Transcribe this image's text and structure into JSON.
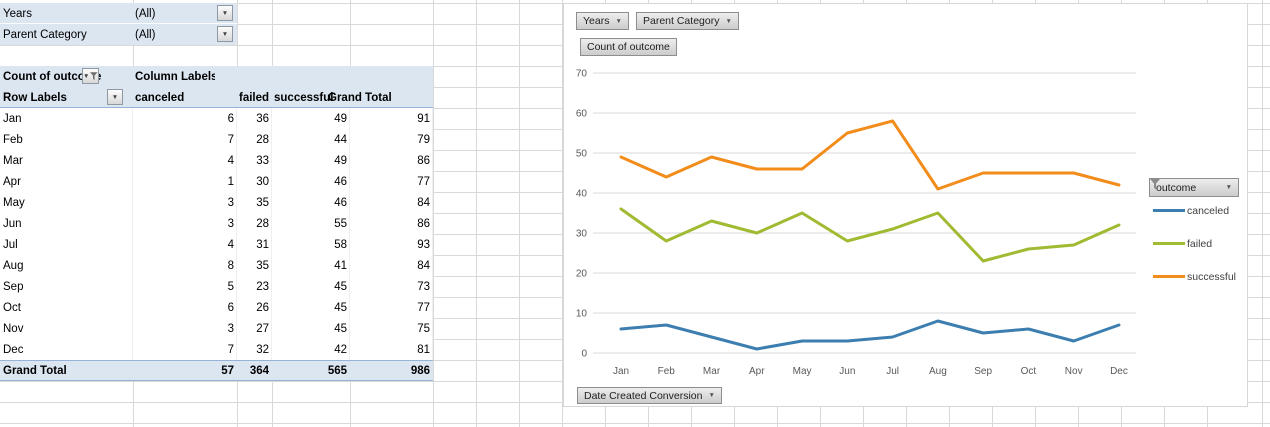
{
  "filters": {
    "rows": [
      {
        "label": "Years",
        "value": "(All)"
      },
      {
        "label": "Parent Category",
        "value": "(All)"
      }
    ]
  },
  "pivot": {
    "measure_label": "Count of outcome",
    "column_field_label": "Column Labels",
    "row_field_label": "Row Labels",
    "columns": [
      "canceled",
      "failed",
      "successful",
      "Grand Total"
    ],
    "rows": [
      {
        "label": "Jan",
        "values": [
          6,
          36,
          49,
          91
        ]
      },
      {
        "label": "Feb",
        "values": [
          7,
          28,
          44,
          79
        ]
      },
      {
        "label": "Mar",
        "values": [
          4,
          33,
          49,
          86
        ]
      },
      {
        "label": "Apr",
        "values": [
          1,
          30,
          46,
          77
        ]
      },
      {
        "label": "May",
        "values": [
          3,
          35,
          46,
          84
        ]
      },
      {
        "label": "Jun",
        "values": [
          3,
          28,
          55,
          86
        ]
      },
      {
        "label": "Jul",
        "values": [
          4,
          31,
          58,
          93
        ]
      },
      {
        "label": "Aug",
        "values": [
          8,
          35,
          41,
          84
        ]
      },
      {
        "label": "Sep",
        "values": [
          5,
          23,
          45,
          73
        ]
      },
      {
        "label": "Oct",
        "values": [
          6,
          26,
          45,
          77
        ]
      },
      {
        "label": "Nov",
        "values": [
          3,
          27,
          45,
          75
        ]
      },
      {
        "label": "Dec",
        "values": [
          7,
          32,
          42,
          81
        ]
      }
    ],
    "grand_total": {
      "label": "Grand Total",
      "values": [
        57,
        364,
        565,
        986
      ]
    },
    "header_fill": "#DCE6F1",
    "border_color": "#95B3D7"
  },
  "chart": {
    "field_buttons": {
      "years": "Years",
      "parent_category": "Parent Category",
      "value": "Count of outcome",
      "axis": "Date Created Conversion"
    },
    "legend": {
      "field_label": "outcome"
    }
  },
  "chart_data": {
    "type": "line",
    "title": "",
    "categories": [
      "Jan",
      "Feb",
      "Mar",
      "Apr",
      "May",
      "Jun",
      "Jul",
      "Aug",
      "Sep",
      "Oct",
      "Nov",
      "Dec"
    ],
    "series": [
      {
        "name": "canceled",
        "color": "#3D7EB0",
        "values": [
          6,
          7,
          4,
          1,
          3,
          3,
          4,
          8,
          5,
          6,
          3,
          7
        ]
      },
      {
        "name": "failed",
        "color": "#A0BA32",
        "values": [
          36,
          28,
          33,
          30,
          35,
          28,
          31,
          35,
          23,
          26,
          27,
          32
        ]
      },
      {
        "name": "successful",
        "color": "#F28C1A",
        "values": [
          49,
          44,
          49,
          46,
          46,
          55,
          58,
          41,
          45,
          45,
          45,
          42
        ]
      }
    ],
    "ylim": [
      0,
      70
    ],
    "yticks": [
      0,
      10,
      20,
      30,
      40,
      50,
      60,
      70
    ],
    "grid": true,
    "legend_position": "right",
    "gridline_color": "#D9D9D9",
    "axis_text_color": "#595959"
  }
}
